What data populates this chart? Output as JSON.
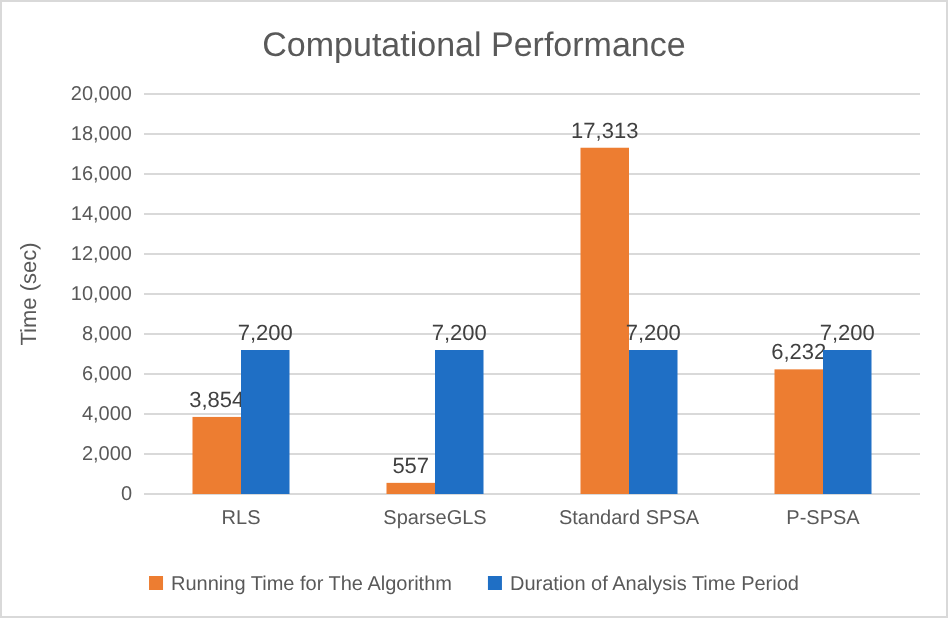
{
  "chart_data": {
    "type": "bar",
    "title": "Computational Performance",
    "ylabel": "Time (sec)",
    "categories": [
      "RLS",
      "SparseGLS",
      "Standard SPSA",
      "P-SPSA"
    ],
    "series": [
      {
        "name": "Running Time for The Algorithm",
        "color": "#ed7d31",
        "values": [
          3854,
          557,
          17313,
          6232
        ]
      },
      {
        "name": "Duration of Analysis Time Period",
        "color": "#1f6fc5",
        "values": [
          7200,
          7200,
          7200,
          7200
        ]
      }
    ],
    "ylim": [
      0,
      20000
    ],
    "yticks": [
      {
        "value": 0,
        "label": "0"
      },
      {
        "value": 2000,
        "label": "2,000"
      },
      {
        "value": 4000,
        "label": "4,000"
      },
      {
        "value": 6000,
        "label": "6,000"
      },
      {
        "value": 8000,
        "label": "8,000"
      },
      {
        "value": 10000,
        "label": "10,000"
      },
      {
        "value": 12000,
        "label": "12,000"
      },
      {
        "value": 14000,
        "label": "14,000"
      },
      {
        "value": 16000,
        "label": "16,000"
      },
      {
        "value": 18000,
        "label": "18,000"
      },
      {
        "value": 20000,
        "label": "20,000"
      }
    ],
    "grid": "y",
    "legend": "bottom",
    "value_labels": [
      [
        "3,854",
        "557",
        "17,313",
        "6,232"
      ],
      [
        "7,200",
        "7,200",
        "7,200",
        "7,200"
      ]
    ]
  }
}
